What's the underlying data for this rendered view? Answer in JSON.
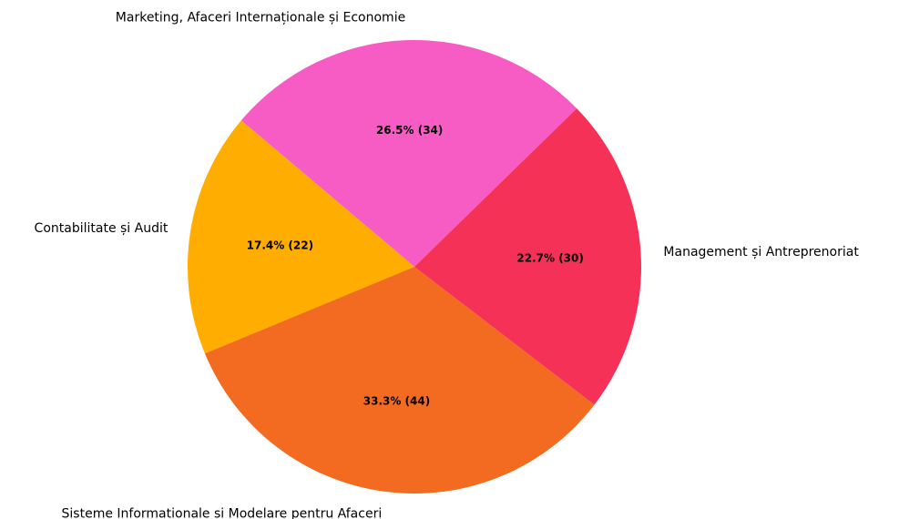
{
  "chart_data": {
    "type": "pie",
    "categories": [
      "Marketing, Afaceri Internaționale și Economie",
      "Contabilitate și Audit",
      "Sisteme Informationale si Modelare pentru Afaceri",
      "Management și Antreprenoriat"
    ],
    "values": [
      26.5,
      17.4,
      33.3,
      22.7
    ],
    "value_labels": [
      "26.5% (34)",
      "17.4% (22)",
      "33.3% (44)",
      "22.7% (30)"
    ],
    "colors": [
      "#f75bc4",
      "#ffad00",
      "#f26b21",
      "#f53157"
    ]
  }
}
